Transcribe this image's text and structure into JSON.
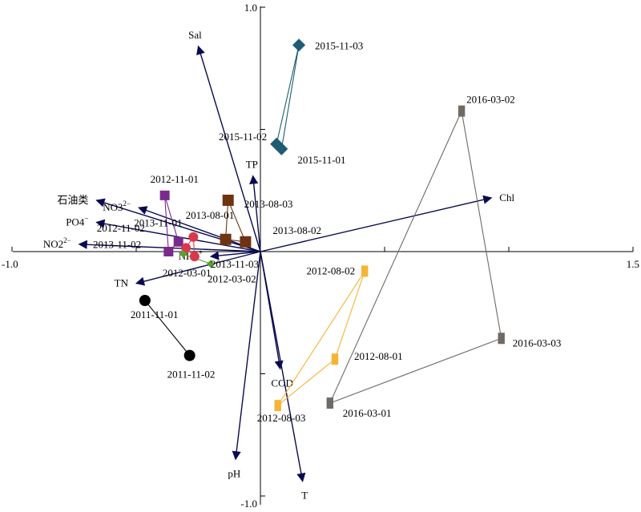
{
  "chart_data": {
    "type": "scatter",
    "subtype": "ordination-biplot",
    "x_axis": {
      "range": [
        -1.0,
        1.5
      ],
      "ticks": [
        -1.0,
        -0.5,
        0.5,
        1.0,
        1.5
      ],
      "tick_labels": [
        "-1.0",
        "",
        "",
        "",
        "1.5"
      ]
    },
    "y_axis": {
      "range": [
        -1.0,
        1.0
      ],
      "ticks": [
        -1.0,
        -0.5,
        0.5,
        1.0
      ],
      "tick_labels": [
        "-1.0",
        "",
        "",
        "1.0"
      ]
    },
    "grid": false,
    "legend": "none",
    "arrow_color": "#0a0a50",
    "arrows": [
      {
        "label": "Sal",
        "x": -0.25,
        "y": 0.84
      },
      {
        "label": "TP",
        "x": -0.03,
        "y": 0.31
      },
      {
        "label": "Chl",
        "x": 0.93,
        "y": 0.22
      },
      {
        "label": "石油类",
        "x": -0.66,
        "y": 0.21
      },
      {
        "label": "NO3",
        "sup": "2−",
        "x": -0.49,
        "y": 0.18
      },
      {
        "label": "PO4",
        "sup": "−",
        "x": -0.66,
        "y": 0.12
      },
      {
        "label": "NO2",
        "sup": "2−",
        "x": -0.73,
        "y": 0.03
      },
      {
        "label": "NH4",
        "sup": "+",
        "x": -0.2,
        "y": -0.02
      },
      {
        "label": "TN",
        "x": -0.5,
        "y": -0.13
      },
      {
        "label": "COD",
        "x": 0.08,
        "y": -0.48
      },
      {
        "label": "pH",
        "x": -0.1,
        "y": -0.85
      },
      {
        "label": "T",
        "x": 0.17,
        "y": -0.94
      }
    ],
    "groups": [
      {
        "color": "#1f5c73",
        "marker": "diamond",
        "size": 8,
        "points": [
          {
            "label": "2015-11-03",
            "x": 0.155,
            "y": 0.845
          },
          {
            "label": "2015-11-02",
            "x": 0.065,
            "y": 0.44
          },
          {
            "label": "2015-11-01",
            "x": 0.085,
            "y": 0.42
          }
        ]
      },
      {
        "color": "#706a66",
        "marker": "rect-tall",
        "size": 7,
        "points": [
          {
            "label": "2016-03-02",
            "x": 0.81,
            "y": 0.575
          },
          {
            "label": "2016-03-03",
            "x": 0.97,
            "y": -0.355
          },
          {
            "label": "2016-03-01",
            "x": 0.28,
            "y": -0.62
          }
        ]
      },
      {
        "color": "#f5b435",
        "marker": "rect-tall",
        "size": 7,
        "points": [
          {
            "label": "2012-08-02",
            "x": 0.42,
            "y": -0.08
          },
          {
            "label": "2012-08-01",
            "x": 0.3,
            "y": -0.44
          },
          {
            "label": "2012-08-03",
            "x": 0.07,
            "y": -0.63
          }
        ]
      },
      {
        "color": "#6e3311",
        "marker": "square",
        "size": 7,
        "points": [
          {
            "label": "2013-08-03",
            "x": -0.13,
            "y": 0.21
          },
          {
            "label": "2013-08-01",
            "x": -0.14,
            "y": 0.05
          },
          {
            "label": "2013-08-02",
            "x": -0.06,
            "y": 0.04
          }
        ]
      },
      {
        "color": "#7a2a8c",
        "marker": "square",
        "size": 6,
        "points": [
          {
            "label": "2012-11-01",
            "x": -0.385,
            "y": 0.23
          },
          {
            "label": "2012-11-02",
            "x": -0.33,
            "y": 0.04
          },
          {
            "label": "",
            "x": -0.37,
            "y": 0.0
          }
        ]
      },
      {
        "color": "#d9394a",
        "marker": "circle",
        "size": 6,
        "points": [
          {
            "label": "2013-11-01",
            "x": -0.27,
            "y": 0.06
          },
          {
            "label": "2013-11-02",
            "x": -0.3,
            "y": 0.015
          },
          {
            "label": "2013-11-03",
            "x": -0.265,
            "y": -0.02
          }
        ]
      },
      {
        "color": "#5aa02c",
        "marker": "diamond",
        "size": 5,
        "points": [
          {
            "label": "2012-03-02",
            "x": -0.2,
            "y": -0.05
          },
          {
            "label": "2012-03-01",
            "x": -0.31,
            "y": -0.01
          }
        ]
      },
      {
        "color": "#000000",
        "marker": "circle",
        "size": 7,
        "points": [
          {
            "label": "2011-11-01",
            "x": -0.465,
            "y": -0.2
          },
          {
            "label": "2011-11-02",
            "x": -0.285,
            "y": -0.425
          }
        ]
      }
    ]
  }
}
